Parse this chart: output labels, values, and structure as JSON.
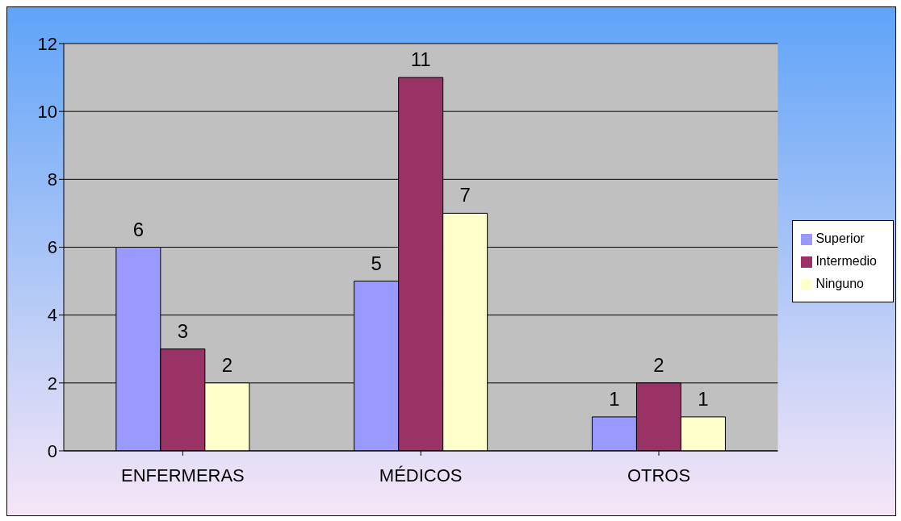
{
  "chart_data": {
    "type": "bar",
    "categories": [
      "ENFERMERAS",
      "MÉDICOS",
      "OTROS"
    ],
    "series": [
      {
        "name": "Superior",
        "color": "#9999ff",
        "values": [
          6,
          5,
          1
        ]
      },
      {
        "name": "Intermedio",
        "color": "#993366",
        "values": [
          3,
          11,
          2
        ]
      },
      {
        "name": "Ninguno",
        "color": "#ffffcc",
        "values": [
          2,
          7,
          1
        ]
      }
    ],
    "ylim": [
      0,
      12
    ],
    "yticks": [
      0,
      2,
      4,
      6,
      8,
      10,
      12
    ],
    "grid": "y",
    "legend": "right",
    "data_labels": true
  }
}
